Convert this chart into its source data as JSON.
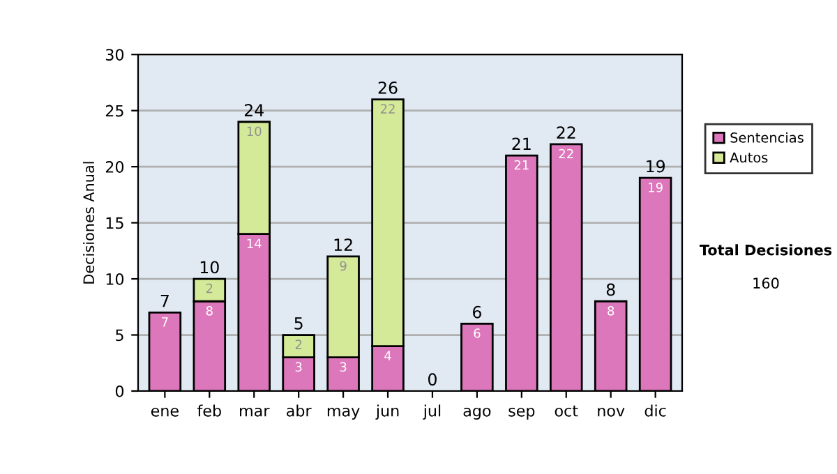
{
  "chart_data": {
    "type": "bar",
    "stacked": true,
    "ylabel": "Decisiones Anual",
    "categories": [
      "ene",
      "feb",
      "mar",
      "abr",
      "may",
      "jun",
      "jul",
      "ago",
      "sep",
      "oct",
      "nov",
      "dic"
    ],
    "series": [
      {
        "name": "Sentencias",
        "color": "#dd77bb",
        "values": [
          7,
          8,
          14,
          3,
          3,
          4,
          0,
          6,
          21,
          22,
          8,
          19
        ],
        "value_labels": [
          "7",
          "8",
          "14",
          "3",
          "3",
          "4",
          null,
          "6",
          "21",
          "22",
          "8",
          "19"
        ]
      },
      {
        "name": "Autos",
        "color": "#d5ea98",
        "values": [
          0,
          2,
          10,
          2,
          9,
          22,
          0,
          0,
          0,
          0,
          0,
          0
        ],
        "value_labels": [
          null,
          "2",
          "10",
          "2",
          "9",
          "22",
          null,
          null,
          null,
          null,
          null,
          null
        ]
      }
    ],
    "totals": [
      "7",
      "10",
      "24",
      "5",
      "12",
      "26",
      "0",
      "6",
      "21",
      "22",
      "8",
      "19"
    ],
    "ylim": [
      0,
      30
    ],
    "yticks": [
      0,
      5,
      10,
      15,
      20,
      25,
      30
    ],
    "grid": "y",
    "legend": "right",
    "annotations": [
      "Total Decisiones",
      "160"
    ]
  }
}
